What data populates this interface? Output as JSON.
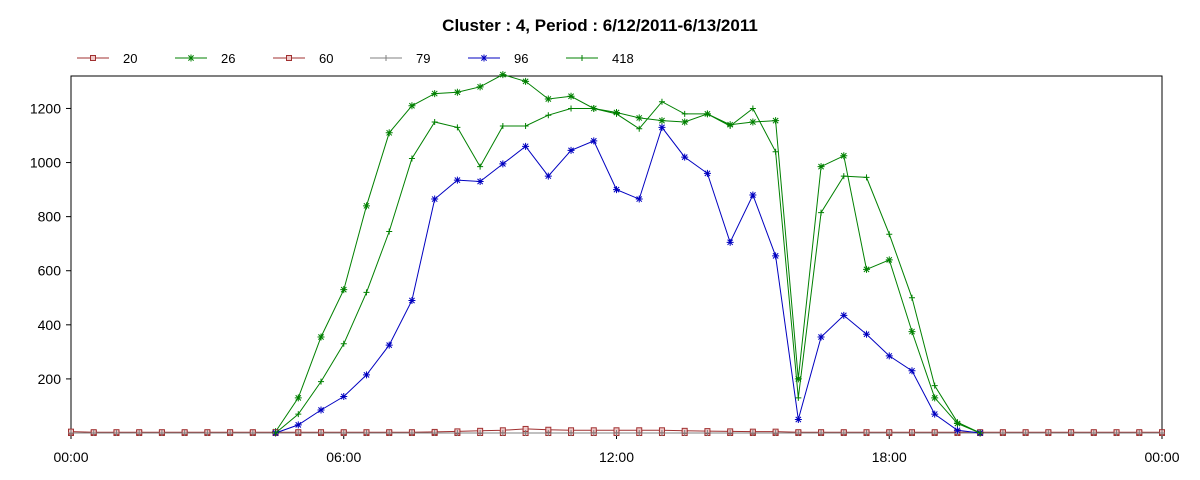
{
  "chart_data": {
    "type": "line",
    "title": "Cluster : 4, Period : 6/12/2011-6/13/2011",
    "xlabel": "",
    "ylabel": "",
    "x_ticks": [
      "00:00",
      "06:00",
      "12:00",
      "18:00",
      "00:00"
    ],
    "x_range_hours": [
      0,
      24
    ],
    "y_ticks": [
      "200",
      "400",
      "600",
      "800",
      "1000",
      "1200"
    ],
    "ylim": [
      0,
      1320
    ],
    "grid": true,
    "legend_position": "top-left",
    "x_hours": [
      0,
      0.5,
      1,
      1.5,
      2,
      2.5,
      3,
      3.5,
      4,
      4.5,
      5,
      5.5,
      6,
      6.5,
      7,
      7.5,
      8,
      8.5,
      9,
      9.5,
      10,
      10.5,
      11,
      11.5,
      12,
      12.5,
      13,
      13.5,
      14,
      14.5,
      15,
      15.5,
      16,
      16.5,
      17,
      17.5,
      18,
      18.5,
      19,
      19.5,
      20,
      20.5,
      21,
      21.5,
      22,
      22.5,
      23,
      23.5,
      24
    ],
    "series": [
      {
        "name": "20",
        "color": "#a03030",
        "marker": "square",
        "values": [
          0,
          0,
          0,
          0,
          0,
          0,
          0,
          0,
          0,
          0,
          0,
          0,
          0,
          0,
          0,
          0,
          0,
          0,
          0,
          0,
          0,
          0,
          0,
          0,
          0,
          0,
          0,
          0,
          0,
          0,
          0,
          0,
          0,
          0,
          0,
          0,
          0,
          0,
          0,
          0,
          0,
          0,
          0,
          0,
          0,
          0,
          0,
          0,
          0
        ]
      },
      {
        "name": "26",
        "color": "#008000",
        "marker": "asterisk",
        "values": [
          null,
          null,
          null,
          null,
          null,
          null,
          null,
          null,
          null,
          5,
          130,
          355,
          530,
          840,
          1110,
          1210,
          1255,
          1260,
          1280,
          1325,
          1300,
          1235,
          1245,
          1200,
          1185,
          1165,
          1155,
          1150,
          1180,
          1140,
          1150,
          1155,
          200,
          985,
          1025,
          605,
          640,
          375,
          130,
          35,
          0,
          null,
          null,
          null,
          null,
          null,
          null,
          null,
          null
        ]
      },
      {
        "name": "60",
        "color": "#a03030",
        "marker": "square",
        "values": [
          5,
          3,
          3,
          3,
          3,
          3,
          3,
          3,
          3,
          3,
          3,
          3,
          3,
          3,
          3,
          3,
          4,
          6,
          8,
          10,
          15,
          12,
          10,
          10,
          10,
          10,
          10,
          8,
          7,
          6,
          5,
          5,
          3,
          3,
          3,
          3,
          3,
          3,
          3,
          3,
          3,
          3,
          3,
          3,
          3,
          3,
          3,
          3,
          3
        ]
      },
      {
        "name": "79",
        "color": "#808080",
        "marker": "plus",
        "values": [
          0,
          0,
          0,
          0,
          0,
          0,
          0,
          0,
          0,
          0,
          0,
          0,
          0,
          0,
          0,
          0,
          0,
          0,
          0,
          0,
          0,
          0,
          0,
          0,
          0,
          0,
          0,
          0,
          0,
          0,
          0,
          0,
          0,
          0,
          0,
          0,
          0,
          0,
          0,
          0,
          0,
          0,
          0,
          0,
          0,
          0,
          0,
          0,
          0
        ]
      },
      {
        "name": "96",
        "color": "#0000c0",
        "marker": "asterisk",
        "values": [
          null,
          null,
          null,
          null,
          null,
          null,
          null,
          null,
          null,
          0,
          30,
          85,
          135,
          215,
          325,
          490,
          865,
          935,
          930,
          995,
          1060,
          950,
          1045,
          1080,
          900,
          865,
          1130,
          1020,
          960,
          705,
          880,
          655,
          50,
          355,
          435,
          365,
          285,
          230,
          70,
          10,
          0,
          null,
          null,
          null,
          null,
          null,
          null,
          null,
          null
        ]
      },
      {
        "name": "418",
        "color": "#008000",
        "marker": "plus",
        "values": [
          null,
          null,
          null,
          null,
          null,
          null,
          null,
          null,
          null,
          0,
          70,
          190,
          330,
          520,
          745,
          1015,
          1150,
          1130,
          985,
          1135,
          1135,
          1175,
          1200,
          1200,
          1180,
          1125,
          1225,
          1180,
          1180,
          1135,
          1200,
          1040,
          130,
          815,
          950,
          945,
          735,
          500,
          175,
          40,
          0,
          null,
          null,
          null,
          null,
          null,
          null,
          null,
          null
        ]
      }
    ]
  }
}
